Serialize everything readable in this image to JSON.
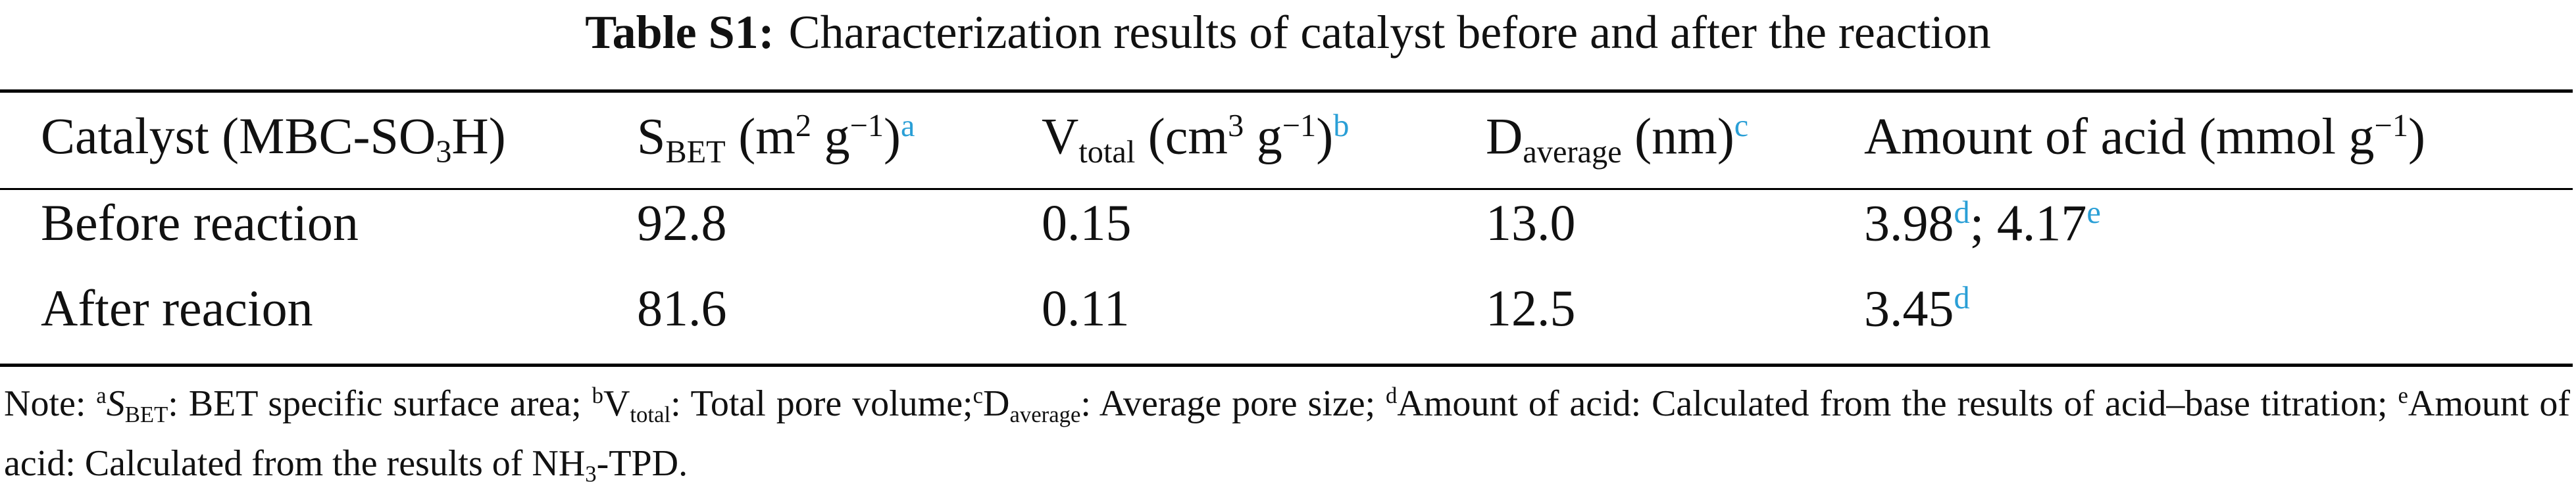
{
  "title": [
    {
      "text": "Table S1:",
      "pos": "bold"
    },
    "Characterization results of catalyst before and after the reaction"
  ],
  "table": {
    "header": [
      [
        "Catalyst (MBC-SO",
        {
          "text": "3",
          "pos": "sub"
        },
        "H)"
      ],
      [
        "S",
        {
          "text": "BET",
          "pos": "sub"
        },
        " (m",
        {
          "text": "2",
          "pos": "sup"
        },
        " g",
        {
          "text": "−1",
          "pos": "sup"
        },
        ")",
        {
          "text": "a",
          "pos": "mark"
        }
      ],
      [
        "V",
        {
          "text": "total",
          "pos": "sub"
        },
        " (cm",
        {
          "text": "3",
          "pos": "sup"
        },
        " g",
        {
          "text": "−1",
          "pos": "sup"
        },
        ")",
        {
          "text": "b",
          "pos": "mark"
        }
      ],
      [
        "D",
        {
          "text": "average",
          "pos": "sub"
        },
        " (nm)",
        {
          "text": "c",
          "pos": "mark"
        }
      ],
      [
        "Amount of acid (mmol g",
        {
          "text": "−1",
          "pos": "sup"
        },
        ")"
      ]
    ],
    "rows": [
      [
        [
          "Before reaction"
        ],
        [
          "92.8"
        ],
        [
          "0.15"
        ],
        [
          "13.0"
        ],
        [
          "3.98",
          {
            "text": "d",
            "pos": "mark"
          },
          "; 4.17",
          {
            "text": "e",
            "pos": "mark"
          }
        ]
      ],
      [
        [
          "After reacion"
        ],
        [
          "81.6"
        ],
        [
          "0.11"
        ],
        [
          "12.5"
        ],
        [
          "3.45",
          {
            "text": "d",
            "pos": "mark"
          }
        ]
      ]
    ]
  },
  "note": [
    "Note: ",
    {
      "text": "a",
      "pos": "sup"
    },
    {
      "text": "S",
      "pos": "italic"
    },
    {
      "text": "BET",
      "pos": "sub"
    },
    ": BET specific surface area; ",
    {
      "text": "b",
      "pos": "sup"
    },
    "V",
    {
      "text": "total",
      "pos": "sub"
    },
    ": Total pore volume;",
    {
      "text": "c",
      "pos": "sup"
    },
    "D",
    {
      "text": "average",
      "pos": "sub"
    },
    ": Average pore size; ",
    {
      "text": "d",
      "pos": "sup"
    },
    "Amount of acid: Calculated from the results of acid–base titration; ",
    {
      "text": "e",
      "pos": "sup"
    },
    "Amount of acid: Calculated from the results of NH",
    {
      "text": "3",
      "pos": "sub"
    },
    "-TPD."
  ]
}
